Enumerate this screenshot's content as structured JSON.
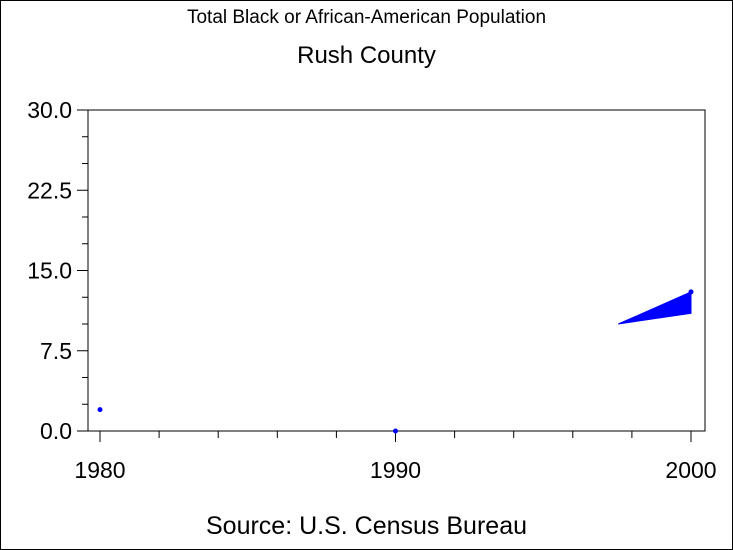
{
  "chart_data": {
    "type": "line",
    "title": "Total Black or African-American Population",
    "subtitle": "Rush County",
    "footnote": "Source: U.S. Census Bureau",
    "xlabel": "",
    "ylabel": "",
    "x": [
      1980,
      1990,
      2000
    ],
    "series": [
      {
        "values": [
          2,
          0,
          13
        ]
      }
    ],
    "xlim": [
      1980,
      2000
    ],
    "ylim": [
      0,
      30
    ],
    "x_ticks": [
      1980,
      1990,
      2000
    ],
    "x_tick_labels": [
      "1980",
      "1990",
      "2000"
    ],
    "y_ticks": [
      0,
      7.5,
      15,
      22.5,
      30
    ],
    "y_tick_labels": [
      "0.0",
      "7.5",
      "15.0",
      "22.5",
      "30.0"
    ],
    "grid": false,
    "legend": "none",
    "colors": {
      "series": "#0000ff",
      "axes": "#000000",
      "background": "#ffffff"
    }
  }
}
